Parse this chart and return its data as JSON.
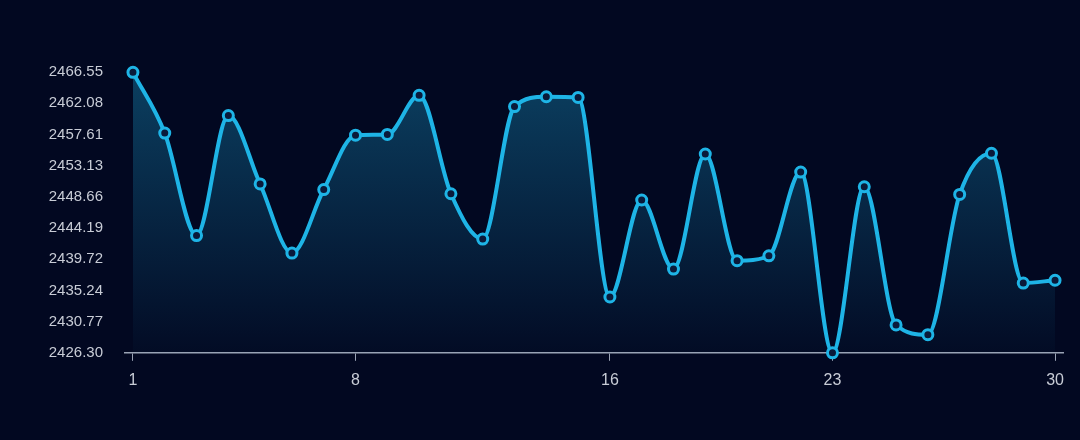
{
  "chart_data": {
    "type": "area",
    "x": [
      1,
      2,
      3,
      4,
      5,
      6,
      7,
      8,
      9,
      10,
      11,
      12,
      13,
      14,
      15,
      16,
      17,
      18,
      19,
      20,
      21,
      22,
      23,
      24,
      25,
      26,
      27,
      28,
      29,
      30
    ],
    "series": [
      {
        "color": "#1eb4e6",
        "values": [
          2466.5,
          2457.8,
          2443.1,
          2460.3,
          2450.5,
          2440.6,
          2449.7,
          2457.5,
          2457.6,
          2463.2,
          2449.1,
          2442.6,
          2461.6,
          2463.0,
          2462.9,
          2434.3,
          2448.2,
          2438.3,
          2454.8,
          2439.5,
          2440.2,
          2452.2,
          2426.3,
          2450.1,
          2430.3,
          2428.9,
          2449.0,
          2454.9,
          2436.3,
          2436.7
        ]
      }
    ],
    "xlim": [
      0.75,
      30.25
    ],
    "xticks": [
      1,
      8,
      16,
      23,
      30
    ],
    "ylim": [
      2426.3,
      2466.55
    ],
    "yticks": [
      {
        "value": 2426.3,
        "label": "2426.30"
      },
      2430.77,
      2435.24,
      2439.72,
      2444.19,
      2448.66,
      2453.13,
      2457.61,
      2462.08,
      2466.55
    ],
    "grid": false,
    "legend": false,
    "marker": "circle",
    "line_style": "solid"
  }
}
